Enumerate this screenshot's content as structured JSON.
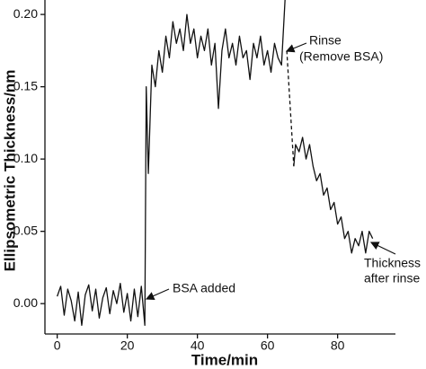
{
  "chart_data": {
    "type": "line",
    "x_label": "Time/min",
    "y_label": "Ellipsometric Thickness/nm",
    "xlim": [
      -3.5,
      96.5
    ],
    "ylim": [
      -0.021,
      0.21
    ],
    "xticks": [
      0,
      20,
      40,
      60,
      80
    ],
    "yticks": [
      {
        "value": 0,
        "label": "0.00"
      },
      {
        "value": 0.05,
        "label": "0.05"
      },
      {
        "value": 0.1,
        "label": "0.10"
      },
      {
        "value": 0.15,
        "label": "0.15"
      },
      {
        "value": 0.2,
        "label": "0.20"
      }
    ],
    "color": "#111111",
    "series": [
      {
        "dash": false,
        "x": [
          0,
          1,
          2,
          3,
          4,
          5,
          6,
          7,
          8,
          9,
          10,
          11,
          12,
          13,
          14,
          15,
          16,
          17,
          18,
          19,
          20,
          21,
          22,
          23,
          24,
          25,
          25.4,
          26,
          27,
          28,
          29,
          30,
          31,
          32,
          33,
          34,
          35,
          36,
          37,
          38,
          39,
          40,
          41,
          42,
          43,
          44,
          45,
          46,
          47,
          48,
          49,
          50,
          51,
          52,
          53,
          54,
          55,
          56,
          57,
          58,
          59,
          60,
          61,
          62,
          63,
          64,
          65
        ],
        "values": [
          0.005,
          0.012,
          -0.008,
          0.01,
          0.002,
          -0.012,
          0.008,
          -0.015,
          0.006,
          0.013,
          -0.005,
          0.01,
          -0.01,
          0.004,
          0.011,
          -0.007,
          0.009,
          0.0,
          0.014,
          -0.006,
          0.007,
          -0.012,
          0.01,
          -0.009,
          0.012,
          -0.015,
          0.15,
          0.09,
          0.165,
          0.15,
          0.175,
          0.16,
          0.185,
          0.17,
          0.195,
          0.18,
          0.19,
          0.175,
          0.2,
          0.18,
          0.19,
          0.17,
          0.185,
          0.175,
          0.19,
          0.165,
          0.18,
          0.135,
          0.175,
          0.19,
          0.17,
          0.18,
          0.165,
          0.185,
          0.17,
          0.175,
          0.155,
          0.18,
          0.17,
          0.185,
          0.165,
          0.175,
          0.16,
          0.18,
          0.17,
          0.165,
          0.21
        ]
      },
      {
        "dash": true,
        "x": [
          65.5,
          67.5
        ],
        "values": [
          0.175,
          0.095
        ]
      },
      {
        "dash": false,
        "x": [
          67.5,
          68,
          69,
          70,
          71,
          72,
          73,
          74,
          75,
          76,
          77,
          78,
          79,
          80,
          81,
          82,
          83,
          84,
          85,
          86,
          87,
          88,
          89,
          90
        ],
        "values": [
          0.095,
          0.11,
          0.105,
          0.115,
          0.1,
          0.11,
          0.095,
          0.085,
          0.09,
          0.075,
          0.08,
          0.065,
          0.07,
          0.055,
          0.06,
          0.045,
          0.05,
          0.035,
          0.045,
          0.04,
          0.05,
          0.035,
          0.05,
          0.045
        ]
      }
    ],
    "annotations": [
      [
        "BSA added"
      ],
      [
        "Rinse",
        "(Remove BSA)"
      ],
      [
        "Thickness",
        "after rinse"
      ]
    ]
  }
}
